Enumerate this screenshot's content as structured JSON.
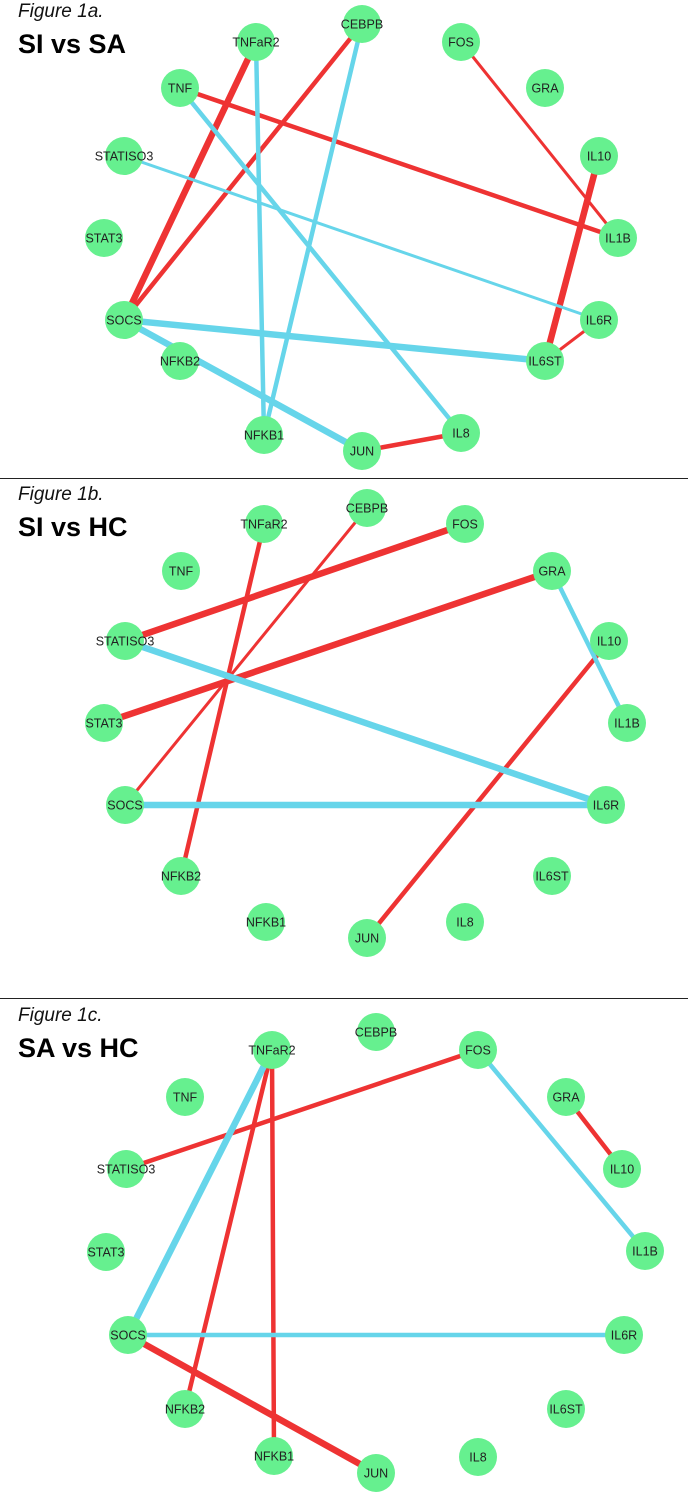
{
  "colors": {
    "node": "#66f08f",
    "positive": "#ee3333",
    "negative": "#66d5ea",
    "divider": "#222222"
  },
  "panels": [
    {
      "figure_label": "Figure 1a.",
      "title": "SI vs SA",
      "nodes": [
        "TNFaR2",
        "CEBPB",
        "FOS",
        "GRA",
        "TNF",
        "IL10",
        "STATISO3",
        "IL1B",
        "STAT3",
        "SOCS",
        "IL6R",
        "NFKB2",
        "IL6ST",
        "NFKB1",
        "IL8",
        "JUN"
      ],
      "edges": [
        {
          "source": "TNFaR2",
          "target": "SOCS",
          "sign": "positive",
          "weight": "thick"
        },
        {
          "source": "CEBPB",
          "target": "SOCS",
          "sign": "positive",
          "weight": "medium"
        },
        {
          "source": "TNF",
          "target": "IL1B",
          "sign": "positive",
          "weight": "medium"
        },
        {
          "source": "FOS",
          "target": "IL1B",
          "sign": "positive",
          "weight": "thin"
        },
        {
          "source": "IL10",
          "target": "IL6ST",
          "sign": "positive",
          "weight": "thick"
        },
        {
          "source": "IL6R",
          "target": "IL6ST",
          "sign": "positive",
          "weight": "thin"
        },
        {
          "source": "JUN",
          "target": "IL8",
          "sign": "positive",
          "weight": "medium"
        },
        {
          "source": "TNFaR2",
          "target": "NFKB1",
          "sign": "negative",
          "weight": "medium"
        },
        {
          "source": "CEBPB",
          "target": "NFKB1",
          "sign": "negative",
          "weight": "medium"
        },
        {
          "source": "TNF",
          "target": "IL8",
          "sign": "negative",
          "weight": "medium"
        },
        {
          "source": "STATISO3",
          "target": "IL6R",
          "sign": "negative",
          "weight": "thin"
        },
        {
          "source": "SOCS",
          "target": "IL6ST",
          "sign": "negative",
          "weight": "thick"
        },
        {
          "source": "SOCS",
          "target": "JUN",
          "sign": "negative",
          "weight": "thick"
        }
      ]
    },
    {
      "figure_label": "Figure 1b.",
      "title": "SI vs HC",
      "nodes": [
        "TNFaR2",
        "CEBPB",
        "FOS",
        "TNF",
        "GRA",
        "IL10",
        "STATISO3",
        "STAT3",
        "IL1B",
        "SOCS",
        "IL6R",
        "NFKB2",
        "IL6ST",
        "NFKB1",
        "IL8",
        "JUN"
      ],
      "edges": [
        {
          "source": "FOS",
          "target": "STATISO3",
          "sign": "positive",
          "weight": "thick"
        },
        {
          "source": "GRA",
          "target": "STAT3",
          "sign": "positive",
          "weight": "thick"
        },
        {
          "source": "CEBPB",
          "target": "SOCS",
          "sign": "positive",
          "weight": "thin"
        },
        {
          "source": "TNFaR2",
          "target": "NFKB2",
          "sign": "positive",
          "weight": "medium"
        },
        {
          "source": "IL10",
          "target": "JUN",
          "sign": "positive",
          "weight": "medium"
        },
        {
          "source": "GRA",
          "target": "IL1B",
          "sign": "negative",
          "weight": "medium"
        },
        {
          "source": "STATISO3",
          "target": "IL6R",
          "sign": "negative",
          "weight": "thick"
        },
        {
          "source": "SOCS",
          "target": "IL6R",
          "sign": "negative",
          "weight": "thick"
        }
      ]
    },
    {
      "figure_label": "Figure 1c.",
      "title": "SA vs HC",
      "nodes": [
        "TNFaR2",
        "CEBPB",
        "FOS",
        "TNF",
        "GRA",
        "IL10",
        "STATISO3",
        "IL1B",
        "STAT3",
        "SOCS",
        "IL6R",
        "NFKB2",
        "IL6ST",
        "NFKB1",
        "IL8",
        "JUN"
      ],
      "edges": [
        {
          "source": "FOS",
          "target": "STATISO3",
          "sign": "positive",
          "weight": "medium"
        },
        {
          "source": "GRA",
          "target": "IL10",
          "sign": "positive",
          "weight": "medium"
        },
        {
          "source": "TNFaR2",
          "target": "NFKB2",
          "sign": "positive",
          "weight": "medium"
        },
        {
          "source": "TNFaR2",
          "target": "NFKB1",
          "sign": "positive",
          "weight": "medium"
        },
        {
          "source": "SOCS",
          "target": "JUN",
          "sign": "positive",
          "weight": "thick"
        },
        {
          "source": "TNFaR2",
          "target": "SOCS",
          "sign": "negative",
          "weight": "thick"
        },
        {
          "source": "FOS",
          "target": "IL1B",
          "sign": "negative",
          "weight": "medium"
        },
        {
          "source": "SOCS",
          "target": "IL6R",
          "sign": "negative",
          "weight": "medium"
        }
      ]
    }
  ]
}
